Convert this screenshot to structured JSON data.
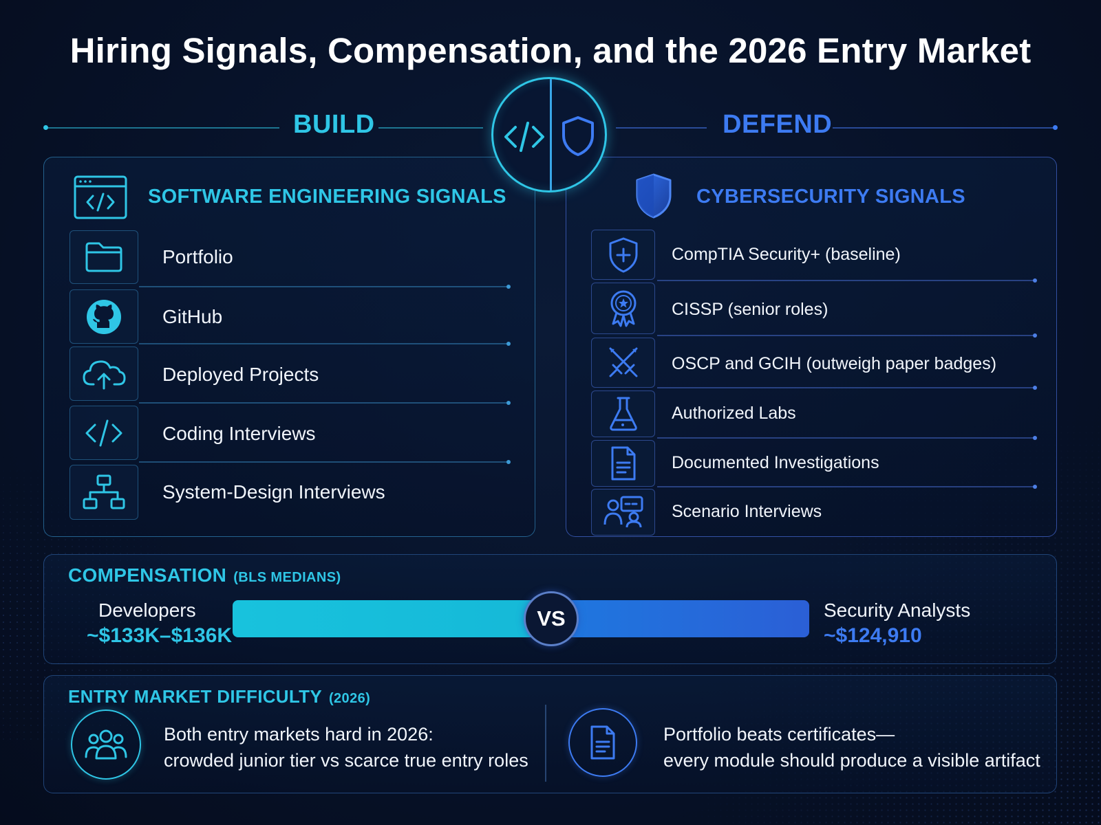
{
  "title": "Hiring Signals, Compensation, and the 2026 Entry Market",
  "build_label": "BUILD",
  "defend_label": "DEFEND",
  "colors": {
    "cyan": "#2fc6e6",
    "blue": "#3d7bf2",
    "bg": "#071229"
  },
  "software": {
    "title": "SOFTWARE ENGINEERING SIGNALS",
    "icon": "browser-code-icon",
    "items": [
      {
        "label": "Portfolio",
        "icon": "folder-icon"
      },
      {
        "label": "GitHub",
        "icon": "github-icon"
      },
      {
        "label": "Deployed Projects",
        "icon": "cloud-upload-icon"
      },
      {
        "label": "Coding Interviews",
        "icon": "code-icon"
      },
      {
        "label": "System-Design Interviews",
        "icon": "hierarchy-icon"
      }
    ]
  },
  "security": {
    "title": "CYBERSECURITY SIGNALS",
    "icon": "shield-icon",
    "items": [
      {
        "label": "CompTIA Security+ (baseline)",
        "icon": "shield-plus-icon"
      },
      {
        "label": "CISSP (senior roles)",
        "icon": "award-icon"
      },
      {
        "label": "OSCP and GCIH (outweigh paper badges)",
        "icon": "crossed-swords-icon"
      },
      {
        "label": "Authorized Labs",
        "icon": "flask-icon"
      },
      {
        "label": "Documented Investigations",
        "icon": "document-icon"
      },
      {
        "label": "Scenario Interviews",
        "icon": "interview-icon"
      }
    ]
  },
  "compensation": {
    "title": "COMPENSATION",
    "subtitle": "(BLS MEDIANS)",
    "left_label": "Developers",
    "left_value": "~$133K–$136K",
    "right_label": "Security Analysts",
    "right_value": "~$124,910",
    "vs": "VS"
  },
  "entry": {
    "title": "ENTRY MARKET DIFFICULTY",
    "subtitle": "(2026)",
    "left_line1": "Both entry markets hard in 2026:",
    "left_line2": "crowded junior tier vs scarce true entry roles",
    "left_icon": "group-icon",
    "right_line1": "Portfolio beats certificates—",
    "right_line2": "every module should produce a visible artifact",
    "right_icon": "document-icon"
  }
}
